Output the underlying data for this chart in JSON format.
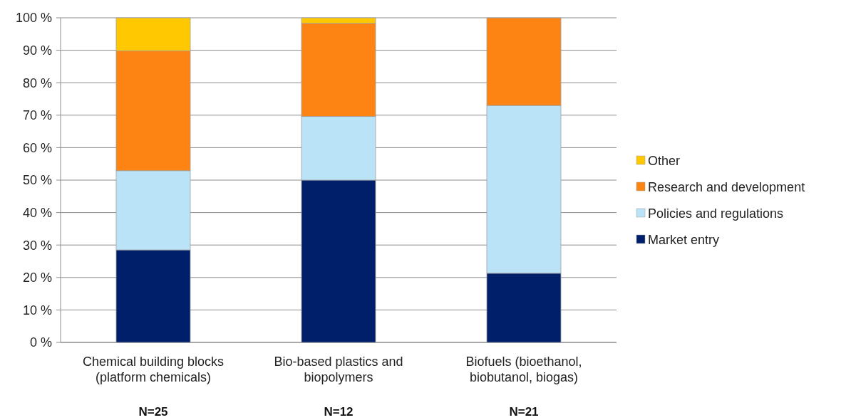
{
  "chart_data": {
    "type": "bar",
    "stacked": true,
    "categories": [
      "Chemical building blocks (platform chemicals)",
      "Bio-based plastics and biopolymers",
      "Biofuels (bioethanol, biobutanol, biogas)"
    ],
    "series": [
      {
        "name": "Market entry",
        "color": "#001f6b",
        "values": [
          28.5,
          50,
          21.3
        ]
      },
      {
        "name": "Policies and regulations",
        "color": "#bae3f7",
        "values": [
          24.4,
          19.6,
          51.7
        ]
      },
      {
        "name": "Research and development",
        "color": "#fd8412",
        "values": [
          36.9,
          28.7,
          27.0
        ]
      },
      {
        "name": "Other",
        "color": "#ffc800",
        "values": [
          10.2,
          1.7,
          null
        ]
      }
    ],
    "ylim": [
      0,
      100
    ],
    "yticks": [
      {
        "value": 0,
        "label": "0 %"
      },
      {
        "value": 10,
        "label": "10 %"
      },
      {
        "value": 20,
        "label": "20 %"
      },
      {
        "value": 30,
        "label": "30 %"
      },
      {
        "value": 40,
        "label": "40 %"
      },
      {
        "value": 50,
        "label": "50 %"
      },
      {
        "value": 60,
        "label": "60 %"
      },
      {
        "value": 70,
        "label": "70 %"
      },
      {
        "value": 80,
        "label": "80 %"
      },
      {
        "value": 90,
        "label": "90 %"
      },
      {
        "value": 100,
        "label": "100 %"
      }
    ],
    "grid": "y",
    "legend": "right",
    "annotations": [
      "N=25",
      "N=12",
      "N=21"
    ]
  }
}
